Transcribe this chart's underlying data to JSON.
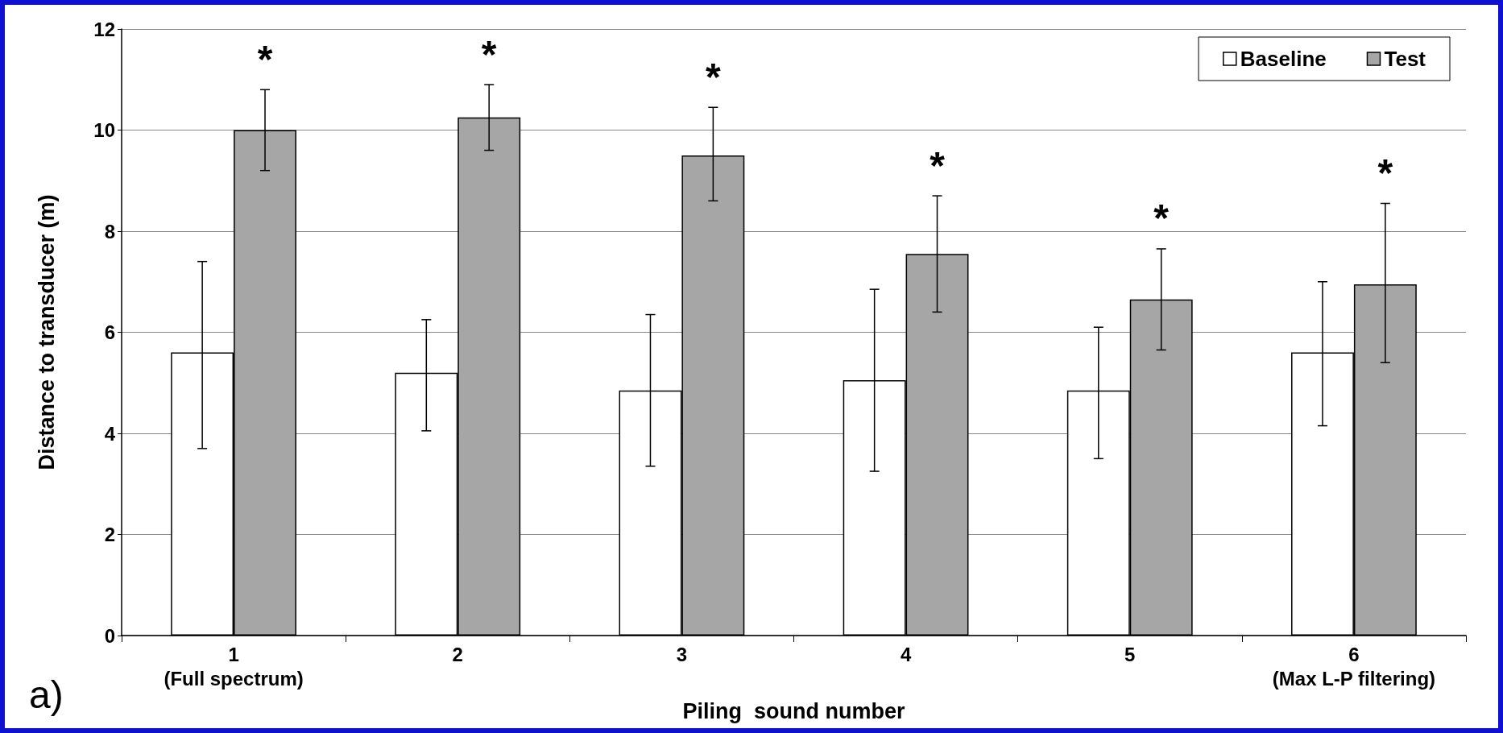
{
  "chart_data": {
    "type": "bar",
    "xlabel": "Piling  sound number",
    "ylabel": "Distance to transducer (m)",
    "categories": [
      "1\n(Full spectrum)",
      "2",
      "3",
      "4",
      "5",
      "6\n(Max L-P filtering)"
    ],
    "series": [
      {
        "name": "Baseline",
        "color": "#ffffff",
        "values": [
          5.6,
          5.2,
          4.85,
          5.05,
          4.85,
          5.6
        ],
        "errors": [
          [
            3.7,
            7.4
          ],
          [
            4.05,
            6.25
          ],
          [
            3.35,
            6.35
          ],
          [
            3.25,
            6.85
          ],
          [
            3.5,
            6.1
          ],
          [
            4.15,
            7.0
          ]
        ]
      },
      {
        "name": "Test",
        "color": "#a6a6a6",
        "values": [
          10.0,
          10.25,
          9.5,
          7.55,
          6.65,
          6.95
        ],
        "errors": [
          [
            9.2,
            10.8
          ],
          [
            9.6,
            10.9
          ],
          [
            8.6,
            10.45
          ],
          [
            6.4,
            8.7
          ],
          [
            5.65,
            7.65
          ],
          [
            5.4,
            8.55
          ]
        ]
      }
    ],
    "ylim": [
      0,
      12
    ],
    "yticks": [
      0,
      2,
      4,
      6,
      8,
      10,
      12
    ],
    "grid": "y",
    "legend": "top right",
    "annotations": [
      "*",
      "*",
      "*",
      "*",
      "*",
      "*",
      "a)"
    ]
  }
}
